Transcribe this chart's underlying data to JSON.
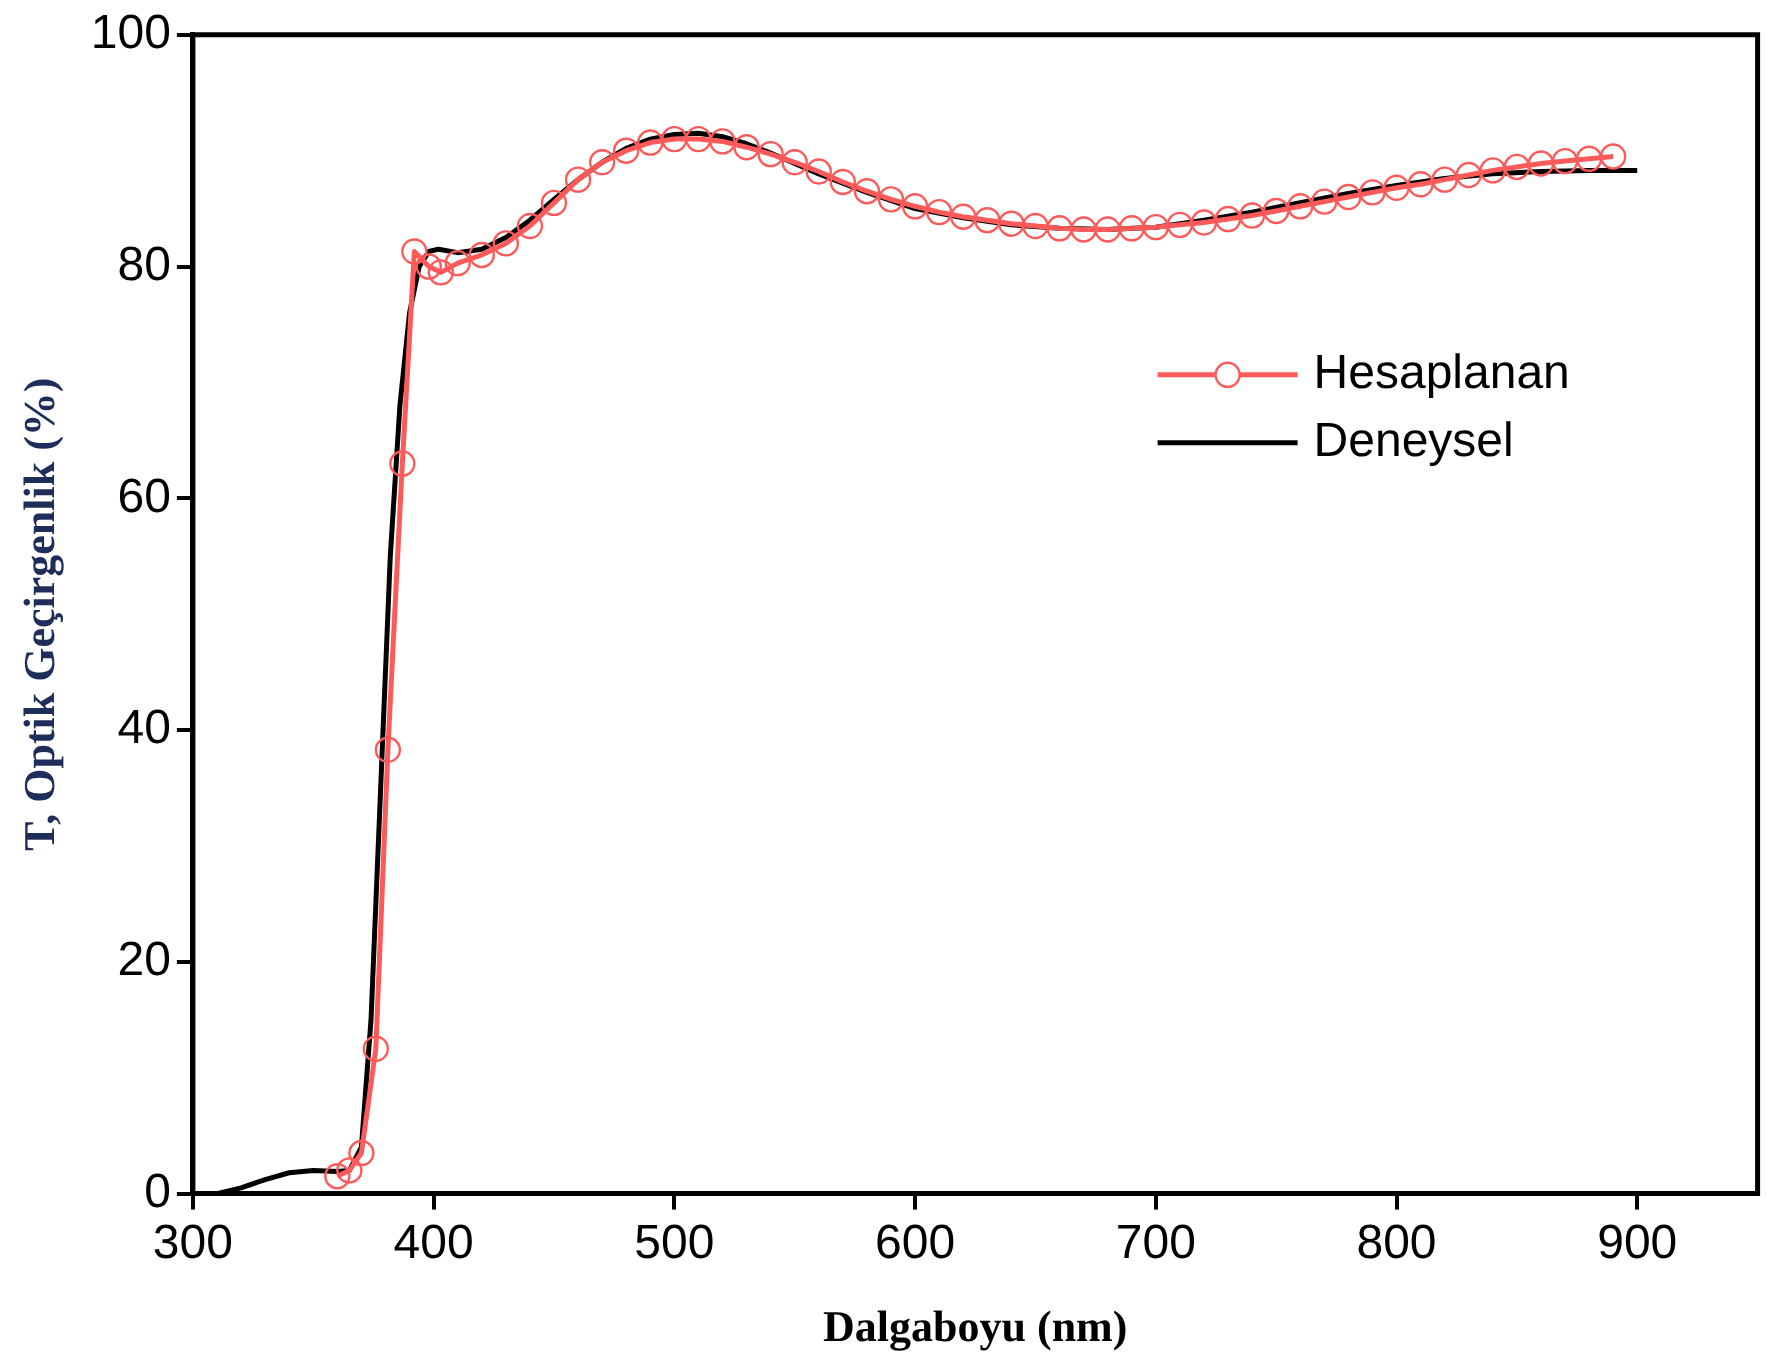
{
  "chart_data": {
    "type": "line",
    "xlabel": "Dalgaboyu (nm)",
    "ylabel": "T, Optik Geçirgenlik (%)",
    "xlim": [
      300,
      950
    ],
    "xticks": [
      300,
      400,
      500,
      600,
      700,
      800,
      900
    ],
    "ylim": [
      0,
      100
    ],
    "yticks": [
      0,
      20,
      40,
      60,
      80,
      100
    ],
    "grid": false,
    "legend": "top right",
    "line_style": "solid",
    "series": [
      {
        "name": "Hesaplanan",
        "color": "#ff5a5a",
        "marker": "circle",
        "x": [
          360,
          365,
          370,
          376,
          381,
          387,
          392,
          398,
          403,
          410,
          420,
          430,
          440,
          450,
          460,
          470,
          480,
          490,
          500,
          510,
          520,
          530,
          540,
          550,
          560,
          570,
          580,
          590,
          600,
          610,
          620,
          630,
          640,
          650,
          660,
          670,
          680,
          690,
          700,
          710,
          720,
          730,
          740,
          750,
          760,
          770,
          780,
          790,
          800,
          810,
          820,
          830,
          840,
          850,
          860,
          870,
          880,
          890
        ],
        "values": [
          1.5,
          2,
          3.5,
          12.5,
          38.3,
          63,
          81.3,
          80,
          79.5,
          80.3,
          81,
          82,
          83.5,
          85.5,
          87.5,
          89,
          90,
          90.7,
          91,
          91,
          90.8,
          90.3,
          89.7,
          89,
          88.2,
          87.3,
          86.5,
          85.8,
          85.2,
          84.7,
          84.3,
          84,
          83.7,
          83.5,
          83.3,
          83.2,
          83.2,
          83.3,
          83.4,
          83.6,
          83.8,
          84.1,
          84.4,
          84.8,
          85.2,
          85.6,
          86,
          86.4,
          86.8,
          87.1,
          87.5,
          87.9,
          88.3,
          88.6,
          88.9,
          89.1,
          89.3,
          89.5
        ]
      },
      {
        "name": "Deneysel",
        "color": "#000000",
        "marker": "none",
        "x": [
          300,
          310,
          320,
          330,
          340,
          350,
          360,
          365,
          370,
          374,
          378,
          382,
          386,
          390,
          394,
          398,
          402,
          410,
          420,
          430,
          440,
          450,
          460,
          470,
          480,
          490,
          500,
          510,
          520,
          530,
          540,
          560,
          580,
          600,
          620,
          640,
          660,
          680,
          700,
          720,
          740,
          760,
          780,
          800,
          820,
          840,
          860,
          880,
          900
        ],
        "values": [
          0,
          0,
          0.5,
          1.2,
          1.8,
          2,
          1.9,
          2,
          4,
          15,
          35,
          55,
          68,
          76,
          80,
          81.3,
          81.5,
          81.2,
          81.5,
          82.5,
          84,
          85.8,
          87.5,
          89,
          90.2,
          91,
          91.4,
          91.5,
          91.2,
          90.6,
          89.8,
          88,
          86.4,
          85,
          84.2,
          83.6,
          83.3,
          83.2,
          83.4,
          84,
          84.7,
          85.5,
          86.3,
          87,
          87.6,
          88,
          88.2,
          88.3,
          88.3
        ]
      }
    ]
  }
}
